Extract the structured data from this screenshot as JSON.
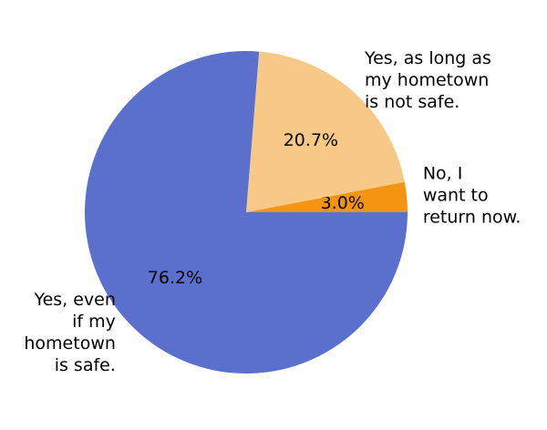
{
  "chart_data": {
    "type": "pie",
    "title": "",
    "slices": [
      {
        "label_lines": [
          "No, I",
          "want to",
          "return now."
        ],
        "value": 3.0,
        "pct_label": "3.0%",
        "color": "#f39510"
      },
      {
        "label_lines": [
          "Yes, as long as",
          "my hometown",
          "is not safe."
        ],
        "value": 20.7,
        "pct_label": "20.7%",
        "color": "#f8c986"
      },
      {
        "label_lines": [
          "Yes, even",
          "if my",
          "hometown",
          "is safe."
        ],
        "value": 76.2,
        "pct_label": "76.2%",
        "color": "#5b6fcc"
      }
    ],
    "start_angle_deg": 0,
    "direction": "counterclockwise",
    "legend": "none"
  }
}
